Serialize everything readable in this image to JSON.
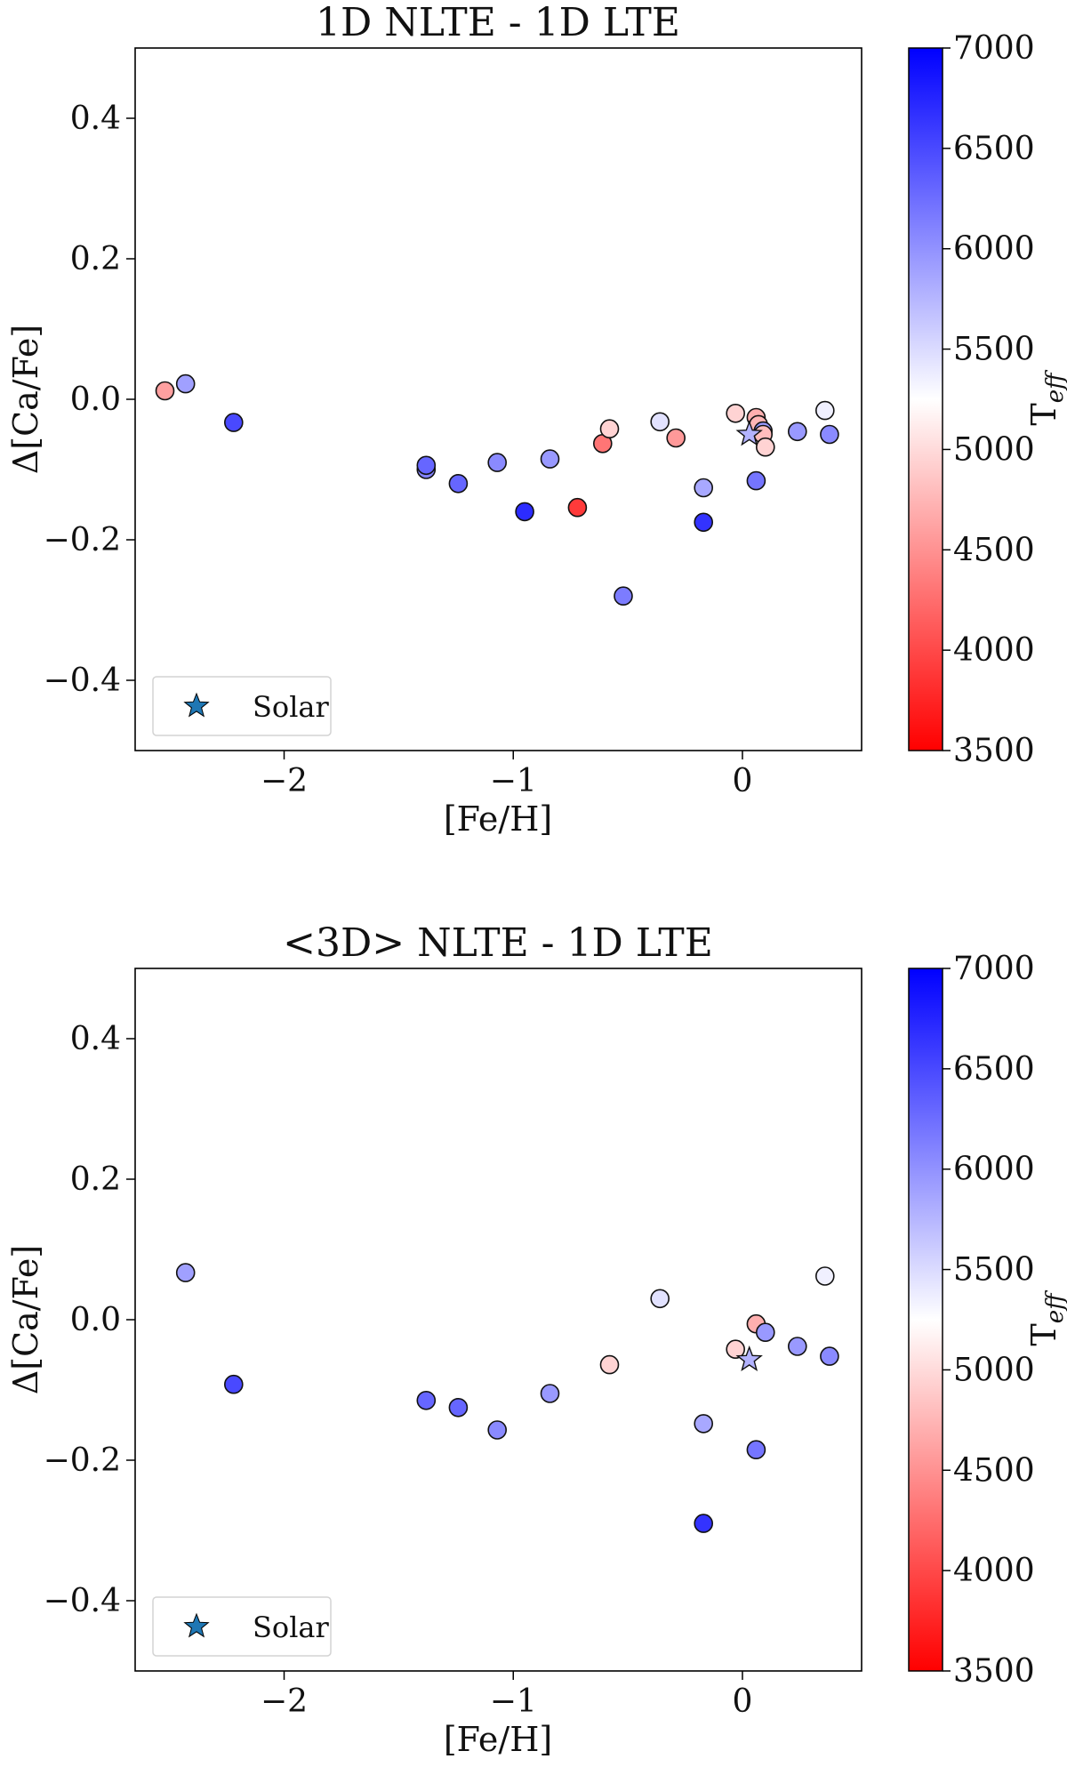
{
  "chart_data": [
    {
      "type": "scatter",
      "title": "1D NLTE - 1D LTE",
      "xlabel": "[Fe/H]",
      "ylabel": "Δ[Ca/Fe]",
      "xlim": [
        -2.65,
        0.52
      ],
      "ylim": [
        -0.5,
        0.5
      ],
      "xticks": [
        -2,
        -1,
        0
      ],
      "xtick_labels": [
        "−2",
        "−1",
        "0"
      ],
      "yticks": [
        -0.4,
        -0.2,
        0.0,
        0.2,
        0.4
      ],
      "ytick_labels": [
        "−0.4",
        "−0.2",
        "0.0",
        "0.2",
        "0.4"
      ],
      "colorbar": {
        "label": "T",
        "label_sub": "eff",
        "min": 3500,
        "max": 7000,
        "ticks": [
          3500,
          4000,
          4500,
          5000,
          5500,
          6000,
          6500,
          7000
        ],
        "tick_labels": [
          "3500",
          "4000",
          "4500",
          "5000",
          "5500",
          "6000",
          "6500",
          "7000"
        ],
        "colormap": "bwr_r",
        "low_color": "#ff0000",
        "mid_color": "#ffffff",
        "high_color": "#0000ff"
      },
      "legend": {
        "label": "Solar",
        "marker": "star",
        "color": "#1f77b4",
        "location": "lower-left"
      },
      "solar": {
        "x": 0.03,
        "y": -0.05,
        "teff": 5772
      },
      "points": [
        {
          "x": -2.52,
          "y": 0.012,
          "teff": 4600
        },
        {
          "x": -2.43,
          "y": 0.022,
          "teff": 5900
        },
        {
          "x": -2.22,
          "y": -0.033,
          "teff": 6500
        },
        {
          "x": -1.38,
          "y": -0.1,
          "teff": 6100
        },
        {
          "x": -1.38,
          "y": -0.094,
          "teff": 6300
        },
        {
          "x": -1.24,
          "y": -0.12,
          "teff": 6300
        },
        {
          "x": -1.07,
          "y": -0.09,
          "teff": 6050
        },
        {
          "x": -0.95,
          "y": -0.16,
          "teff": 6700
        },
        {
          "x": -0.84,
          "y": -0.085,
          "teff": 5950
        },
        {
          "x": -0.72,
          "y": -0.154,
          "teff": 3900
        },
        {
          "x": -0.61,
          "y": -0.063,
          "teff": 4300
        },
        {
          "x": -0.58,
          "y": -0.042,
          "teff": 4950
        },
        {
          "x": -0.52,
          "y": -0.28,
          "teff": 6150
        },
        {
          "x": -0.36,
          "y": -0.032,
          "teff": 5450
        },
        {
          "x": -0.29,
          "y": -0.055,
          "teff": 4550
        },
        {
          "x": -0.17,
          "y": -0.126,
          "teff": 5850
        },
        {
          "x": -0.17,
          "y": -0.175,
          "teff": 6650
        },
        {
          "x": -0.03,
          "y": -0.02,
          "teff": 4950
        },
        {
          "x": 0.06,
          "y": -0.026,
          "teff": 4700
        },
        {
          "x": 0.06,
          "y": -0.116,
          "teff": 6200
        },
        {
          "x": 0.07,
          "y": -0.036,
          "teff": 4750
        },
        {
          "x": 0.09,
          "y": -0.045,
          "teff": 5950
        },
        {
          "x": 0.09,
          "y": -0.05,
          "teff": 4800
        },
        {
          "x": 0.1,
          "y": -0.068,
          "teff": 4950
        },
        {
          "x": 0.24,
          "y": -0.046,
          "teff": 5950
        },
        {
          "x": 0.36,
          "y": -0.016,
          "teff": 5350
        },
        {
          "x": 0.38,
          "y": -0.05,
          "teff": 6050
        }
      ]
    },
    {
      "type": "scatter",
      "title": "<3D> NLTE - 1D LTE",
      "xlabel": "[Fe/H]",
      "ylabel": "Δ[Ca/Fe]",
      "xlim": [
        -2.65,
        0.52
      ],
      "ylim": [
        -0.5,
        0.5
      ],
      "xticks": [
        -2,
        -1,
        0
      ],
      "xtick_labels": [
        "−2",
        "−1",
        "0"
      ],
      "yticks": [
        -0.4,
        -0.2,
        0.0,
        0.2,
        0.4
      ],
      "ytick_labels": [
        "−0.4",
        "−0.2",
        "0.0",
        "0.2",
        "0.4"
      ],
      "colorbar": {
        "label": "T",
        "label_sub": "eff",
        "min": 3500,
        "max": 7000,
        "ticks": [
          3500,
          4000,
          4500,
          5000,
          5500,
          6000,
          6500,
          7000
        ],
        "tick_labels": [
          "3500",
          "4000",
          "4500",
          "5000",
          "5500",
          "6000",
          "6500",
          "7000"
        ],
        "colormap": "bwr_r",
        "low_color": "#ff0000",
        "mid_color": "#ffffff",
        "high_color": "#0000ff"
      },
      "legend": {
        "label": "Solar",
        "marker": "star",
        "color": "#1f77b4",
        "location": "lower-left"
      },
      "solar": {
        "x": 0.03,
        "y": -0.057,
        "teff": 5772
      },
      "points": [
        {
          "x": -2.43,
          "y": 0.067,
          "teff": 5900
        },
        {
          "x": -2.22,
          "y": -0.092,
          "teff": 6500
        },
        {
          "x": -1.38,
          "y": -0.115,
          "teff": 6300
        },
        {
          "x": -1.24,
          "y": -0.125,
          "teff": 6300
        },
        {
          "x": -1.07,
          "y": -0.157,
          "teff": 6050
        },
        {
          "x": -0.84,
          "y": -0.105,
          "teff": 5950
        },
        {
          "x": -0.58,
          "y": -0.064,
          "teff": 4950
        },
        {
          "x": -0.36,
          "y": 0.03,
          "teff": 5450
        },
        {
          "x": -0.17,
          "y": -0.148,
          "teff": 5850
        },
        {
          "x": -0.17,
          "y": -0.29,
          "teff": 6650
        },
        {
          "x": -0.03,
          "y": -0.042,
          "teff": 4950
        },
        {
          "x": 0.06,
          "y": -0.006,
          "teff": 4700
        },
        {
          "x": 0.06,
          "y": -0.185,
          "teff": 6200
        },
        {
          "x": 0.1,
          "y": -0.018,
          "teff": 5950
        },
        {
          "x": 0.24,
          "y": -0.038,
          "teff": 5950
        },
        {
          "x": 0.36,
          "y": 0.062,
          "teff": 5350
        },
        {
          "x": 0.38,
          "y": -0.052,
          "teff": 6050
        }
      ]
    }
  ]
}
